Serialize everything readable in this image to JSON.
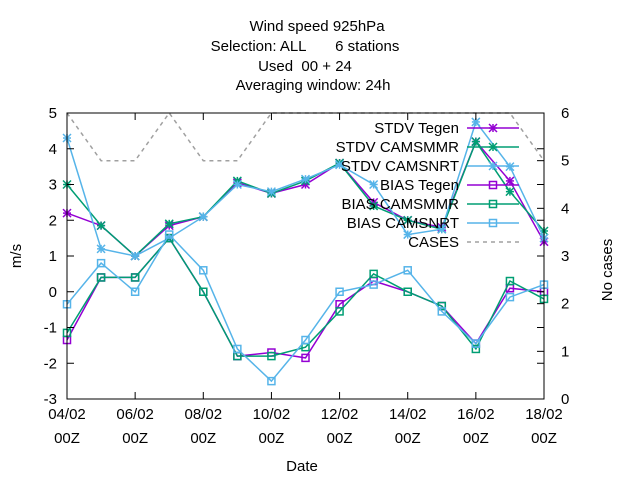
{
  "chart_data": {
    "type": "line",
    "title_lines": [
      "Wind speed 925hPa",
      "Selection: ALL       6 stations",
      "Used  00 + 24",
      "Averaging window: 24h"
    ],
    "xlabel": "Date",
    "ylabel": "m/s",
    "y2label": "No cases",
    "x_ticks": [
      {
        "day": 0,
        "line1": "04/02",
        "line2": "00Z"
      },
      {
        "day": 2,
        "line1": "06/02",
        "line2": "00Z"
      },
      {
        "day": 4,
        "line1": "08/02",
        "line2": "00Z"
      },
      {
        "day": 6,
        "line1": "10/02",
        "line2": "00Z"
      },
      {
        "day": 8,
        "line1": "12/02",
        "line2": "00Z"
      },
      {
        "day": 10,
        "line1": "14/02",
        "line2": "00Z"
      },
      {
        "day": 12,
        "line1": "16/02",
        "line2": "00Z"
      },
      {
        "day": 14,
        "line1": "18/02",
        "line2": "00Z"
      }
    ],
    "xlim": [
      0,
      14
    ],
    "ylim": [
      -3,
      5
    ],
    "y2lim": [
      0,
      6
    ],
    "y_ticks": [
      -3,
      -2,
      -1,
      0,
      1,
      2,
      3,
      4,
      5
    ],
    "y2_ticks": [
      0,
      1,
      2,
      3,
      4,
      5,
      6
    ],
    "legend_position": "top-right",
    "x_days": [
      0,
      1,
      2,
      3,
      4,
      5,
      6,
      7,
      8,
      9,
      10,
      11,
      12,
      13,
      14
    ],
    "series": [
      {
        "name": "STDV Tegen",
        "color": "#9400d3",
        "marker": "star",
        "dash": "solid",
        "axis": "y",
        "values": [
          2.2,
          1.85,
          1.0,
          1.85,
          2.1,
          3.05,
          2.75,
          3.0,
          3.6,
          2.5,
          2.0,
          1.8,
          4.2,
          3.1,
          1.4
        ]
      },
      {
        "name": "STDV CAMSMMR",
        "color": "#009e73",
        "marker": "star",
        "dash": "solid",
        "axis": "y",
        "values": [
          3.0,
          1.85,
          1.0,
          1.9,
          2.1,
          3.1,
          2.75,
          3.1,
          3.6,
          2.4,
          2.0,
          1.75,
          4.2,
          2.8,
          1.7
        ]
      },
      {
        "name": "STDV CAMSNRT",
        "color": "#56b4e9",
        "marker": "star",
        "dash": "solid",
        "axis": "y",
        "values": [
          4.3,
          1.2,
          1.0,
          1.5,
          2.1,
          3.0,
          2.8,
          3.15,
          3.55,
          3.0,
          1.6,
          1.75,
          4.75,
          3.5,
          1.5
        ]
      },
      {
        "name": "BIAS Tegen",
        "color": "#9400d3",
        "marker": "square",
        "dash": "solid",
        "axis": "y",
        "values": [
          -1.35,
          0.4,
          0.4,
          1.5,
          0.0,
          -1.8,
          -1.7,
          -1.85,
          -0.35,
          0.3,
          0.0,
          -0.4,
          -1.45,
          0.1,
          0.0
        ]
      },
      {
        "name": "BIAS CAMSMMR",
        "color": "#009e73",
        "marker": "square",
        "dash": "solid",
        "axis": "y",
        "values": [
          -1.15,
          0.4,
          0.4,
          1.5,
          0.0,
          -1.8,
          -1.8,
          -1.55,
          -0.55,
          0.5,
          0.0,
          -0.4,
          -1.6,
          0.3,
          -0.2
        ]
      },
      {
        "name": "BIAS CAMSNRT",
        "color": "#56b4e9",
        "marker": "square",
        "dash": "solid",
        "axis": "y",
        "values": [
          -0.35,
          0.8,
          0.0,
          1.6,
          0.6,
          -1.6,
          -2.5,
          -1.35,
          0.0,
          0.2,
          0.6,
          -0.55,
          -1.45,
          -0.15,
          0.2
        ]
      },
      {
        "name": "CASES",
        "color": "#a0a0a0",
        "marker": "none",
        "dash": "dashed",
        "axis": "y2",
        "values": [
          6,
          5,
          5,
          6,
          5,
          5,
          6,
          6,
          6,
          6,
          6,
          6,
          6,
          6,
          5
        ]
      }
    ]
  }
}
